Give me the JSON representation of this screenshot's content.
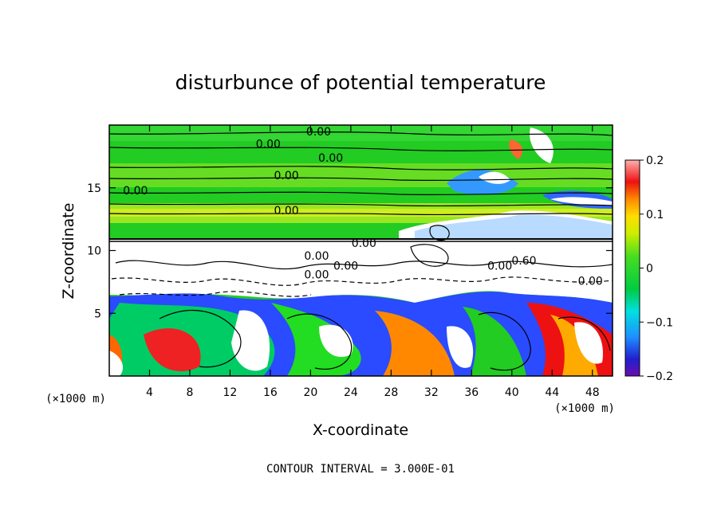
{
  "chart_data": {
    "type": "heatmap",
    "title": "disturbunce of potential temperature",
    "xlabel": "X-coordinate",
    "ylabel": "Z-coordinate",
    "x_unit": "(×1000 m)",
    "z_unit": "(×1000 m)",
    "xlim": [
      0,
      50
    ],
    "ylim": [
      0,
      20
    ],
    "x_ticks": [
      4,
      8,
      12,
      16,
      20,
      24,
      28,
      32,
      36,
      40,
      44,
      48
    ],
    "y_ticks": [
      5,
      10,
      15
    ],
    "colorbar": {
      "min": -0.2,
      "max": 0.2,
      "tick_values": [
        0.2,
        0.1,
        0,
        -0.1,
        -0.2
      ],
      "tick_labels": [
        "0.2",
        "0.1",
        "0",
        "−0.1",
        "−0.2"
      ]
    },
    "contour_labels": [
      {
        "text": "0.00",
        "x": 20.8,
        "z": 19.5
      },
      {
        "text": "0.00",
        "x": 15.8,
        "z": 18.5
      },
      {
        "text": "0.00",
        "x": 22.0,
        "z": 17.4
      },
      {
        "text": "0.00",
        "x": 17.6,
        "z": 16.0
      },
      {
        "text": "0.00",
        "x": 2.6,
        "z": 14.8
      },
      {
        "text": "0.00",
        "x": 17.6,
        "z": 13.2
      },
      {
        "text": "0.00",
        "x": 25.3,
        "z": 10.6
      },
      {
        "text": "0.00",
        "x": 20.6,
        "z": 9.6
      },
      {
        "text": "0.00",
        "x": 23.5,
        "z": 8.8
      },
      {
        "text": "0.00",
        "x": 20.6,
        "z": 8.1
      },
      {
        "text": "0.00",
        "x": 38.8,
        "z": 8.8
      },
      {
        "text": "0.60",
        "x": 41.2,
        "z": 9.2
      },
      {
        "text": "0.00",
        "x": 47.8,
        "z": 7.6
      }
    ],
    "note": "CONTOUR INTERVAL = 3.000E-01"
  }
}
